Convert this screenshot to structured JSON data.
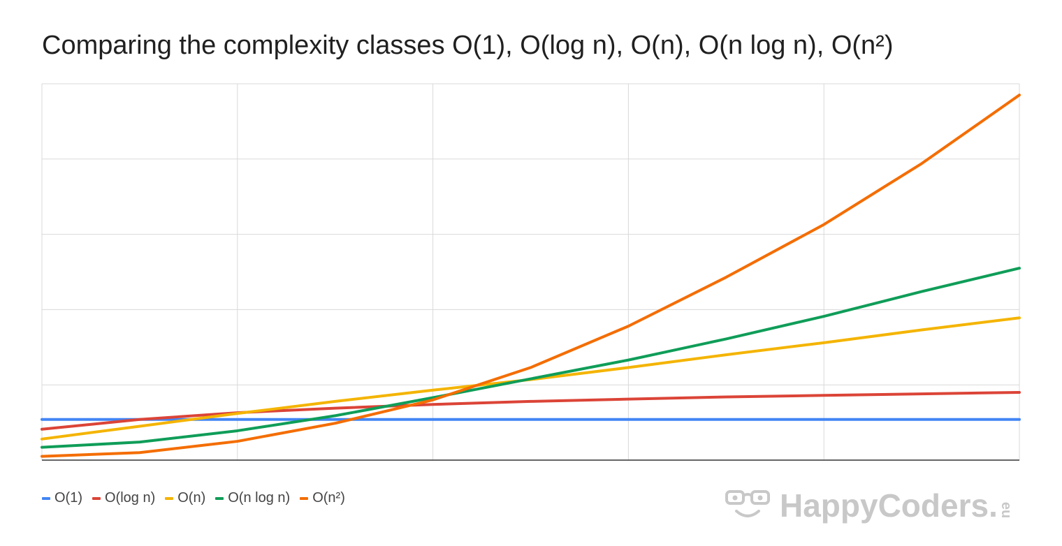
{
  "chart_data": {
    "type": "line",
    "title": "Comparing the complexity classes O(1), O(log n), O(n), O(n log n), O(n²)",
    "xlabel": "",
    "ylabel": "",
    "x": [
      1,
      2,
      3,
      4,
      5,
      6,
      7,
      8,
      9,
      10,
      11
    ],
    "xlim": [
      1,
      11
    ],
    "ylim": [
      0,
      100
    ],
    "grid": true,
    "legend_position": "bottom-left",
    "series": [
      {
        "name": "O(1)",
        "color": "#4285f4",
        "values": [
          10.8,
          10.8,
          10.8,
          10.8,
          10.8,
          10.8,
          10.8,
          10.8,
          10.8,
          10.8,
          10.8
        ]
      },
      {
        "name": "O(log n)",
        "color": "#db4437",
        "values": [
          8.2,
          10.8,
          12.6,
          13.8,
          14.8,
          15.6,
          16.2,
          16.8,
          17.2,
          17.6,
          18.0
        ]
      },
      {
        "name": "O(n)",
        "color": "#f4b400",
        "values": [
          5.6,
          9.0,
          12.4,
          15.6,
          18.6,
          21.4,
          24.6,
          28.0,
          31.2,
          34.6,
          37.8
        ]
      },
      {
        "name": "O(n log n)",
        "color": "#0f9d58",
        "values": [
          3.4,
          4.8,
          7.8,
          11.8,
          16.6,
          21.6,
          26.6,
          32.2,
          38.2,
          44.8,
          51.0
        ]
      },
      {
        "name": "O(n²)",
        "color": "#f46d00",
        "values": [
          1.0,
          2.0,
          5.0,
          9.8,
          16.0,
          24.6,
          35.6,
          48.6,
          62.6,
          78.8,
          97.0
        ]
      }
    ]
  },
  "watermark": {
    "text": "HappyCoders.",
    "tld": "eu"
  }
}
